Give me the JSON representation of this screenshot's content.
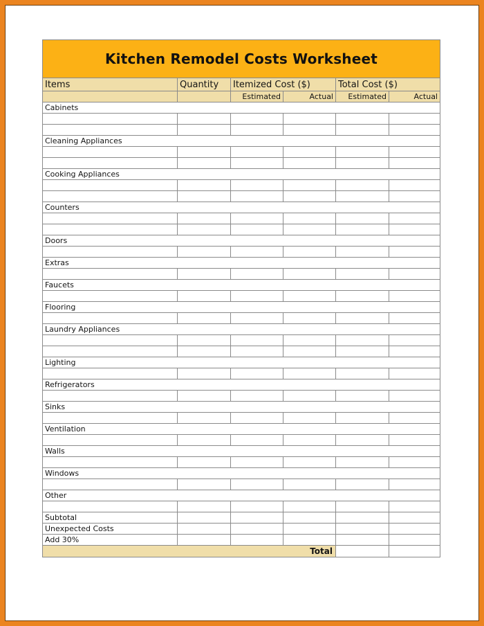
{
  "page": {
    "title": "Kitchen Remodel Costs Worksheet",
    "colors": {
      "frame-orange": "#EB8420",
      "frame-dark": "#6E4010",
      "banner-orange": "#FCB115",
      "header-tan": "#F0DEA9",
      "grid-gray": "#8A8A8A"
    }
  },
  "table": {
    "columns": [
      {
        "label": "Items"
      },
      {
        "label": "Quantity"
      },
      {
        "label": "Itemized Cost ($)"
      },
      {
        "label": "Total Cost ($)"
      }
    ],
    "subheaders": [
      "",
      "",
      "Estimated",
      "Actual",
      "Estimated",
      "Actual"
    ],
    "cell_columns": [
      "items",
      "quantity",
      "itemized-estimated",
      "itemized-actual",
      "total-estimated",
      "total-actual"
    ],
    "sections": [
      {
        "label": "Cabinets",
        "blank_rows": 2
      },
      {
        "label": "Cleaning Appliances",
        "blank_rows": 2
      },
      {
        "label": "Cooking Appliances",
        "blank_rows": 2
      },
      {
        "label": "Counters",
        "blank_rows": 2
      },
      {
        "label": "Doors",
        "blank_rows": 1
      },
      {
        "label": "Extras",
        "blank_rows": 1
      },
      {
        "label": "Faucets",
        "blank_rows": 1
      },
      {
        "label": "Flooring",
        "blank_rows": 1
      },
      {
        "label": "Laundry Appliances",
        "blank_rows": 2
      },
      {
        "label": "Lighting",
        "blank_rows": 1
      },
      {
        "label": "Refrigerators",
        "blank_rows": 1
      },
      {
        "label": "Sinks",
        "blank_rows": 1
      },
      {
        "label": "Ventilation",
        "blank_rows": 1
      },
      {
        "label": "Walls",
        "blank_rows": 1
      },
      {
        "label": "Windows",
        "blank_rows": 1
      },
      {
        "label": "Other",
        "blank_rows": 1
      }
    ],
    "summary_rows": [
      {
        "label": "Subtotal"
      },
      {
        "label": "Unexpected Costs"
      },
      {
        "label": "Add 30%"
      }
    ],
    "total_row": {
      "label": "Total"
    }
  }
}
